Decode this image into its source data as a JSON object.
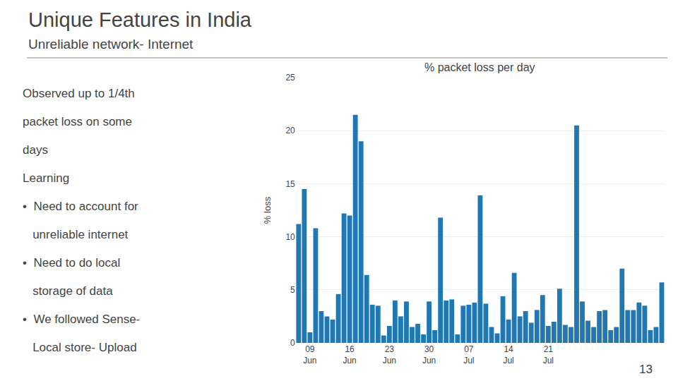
{
  "title": "Unique Features in India",
  "subtitle": "Unreliable network- Internet",
  "annotations": [
    "Observed up to 1/4th",
    "packet loss on some",
    "days",
    "Learning",
    "•  Need to account for",
    "   unreliable internet",
    "•  Need to do local",
    "   storage of data",
    "•  We followed Sense-",
    "   Local store- Upload"
  ],
  "page_number": "13",
  "chart_data": {
    "type": "bar",
    "title": "% packet loss per day",
    "ylabel": "% loss",
    "categories": [
      null,
      null,
      "09\nJun",
      null,
      null,
      null,
      null,
      null,
      null,
      "16\nJun",
      null,
      null,
      null,
      null,
      null,
      null,
      "23\nJun",
      null,
      null,
      null,
      null,
      null,
      null,
      "30\nJun",
      null,
      null,
      null,
      null,
      null,
      null,
      "07\nJul",
      null,
      null,
      null,
      null,
      null,
      null,
      "14\nJul",
      null,
      null,
      null,
      null,
      null,
      null,
      "21\nJul",
      null,
      null,
      null,
      null,
      null,
      null,
      null,
      null,
      null,
      null,
      null,
      null,
      null,
      null,
      null,
      null,
      null,
      null,
      null,
      null
    ],
    "values": [
      11.2,
      14.5,
      1.0,
      10.8,
      3.0,
      2.5,
      2.2,
      4.6,
      12.2,
      12.0,
      21.5,
      19.0,
      6.4,
      3.6,
      3.5,
      0.7,
      1.6,
      4.0,
      2.5,
      3.9,
      1.5,
      1.8,
      0.8,
      3.9,
      1.2,
      11.8,
      4.0,
      4.1,
      0.8,
      3.5,
      3.6,
      3.8,
      13.9,
      3.7,
      1.5,
      0.9,
      4.4,
      2.2,
      6.6,
      2.5,
      3.0,
      1.9,
      3.1,
      4.5,
      1.6,
      2.0,
      5.1,
      1.7,
      1.5,
      20.5,
      3.9,
      2.1,
      1.5,
      3.0,
      3.1,
      1.2,
      1.5,
      7.0,
      3.1,
      3.1,
      3.8,
      3.5,
      1.2,
      1.5,
      5.7
    ],
    "ylim": [
      0,
      25
    ],
    "yticks": [
      0,
      5,
      10,
      15,
      20,
      25
    ],
    "grid": true
  }
}
